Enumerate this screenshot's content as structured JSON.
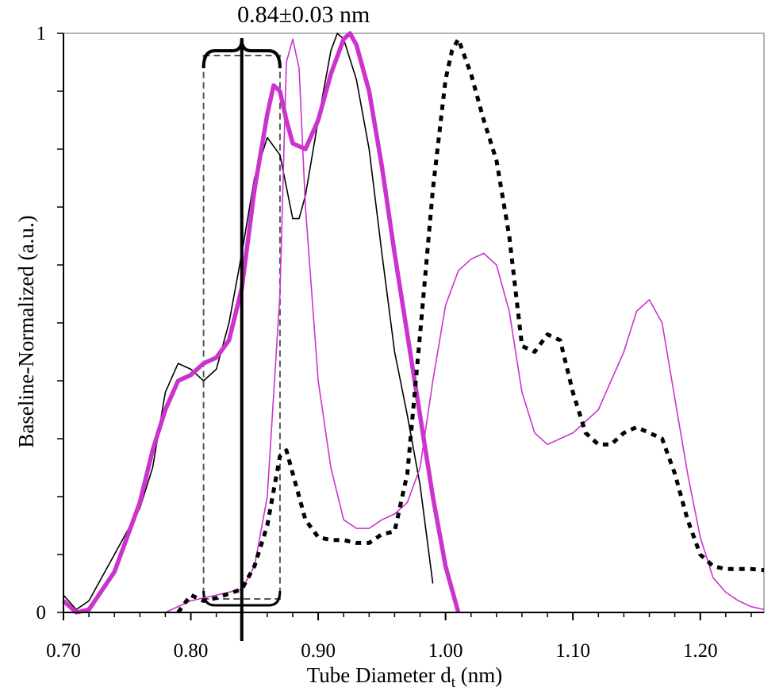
{
  "chart_data": {
    "type": "line",
    "xlabel": "Tube Diameter d",
    "xlabel_sub": "t",
    "xlabel_unit": " (nm)",
    "ylabel": "Baseline-Normalized (a.u.)",
    "xlim": [
      0.7,
      1.25
    ],
    "ylim": [
      0,
      1
    ],
    "x_ticks": [
      "0.70",
      "0.80",
      "0.90",
      "1.00",
      "1.10",
      "1.20"
    ],
    "y_ticks": [
      "0",
      "1"
    ],
    "grid": false,
    "annotation": {
      "text": "0.84±0.03 nm",
      "center": 0.84,
      "low": 0.81,
      "high": 0.87
    },
    "series": [
      {
        "color": "#000000",
        "style": "thin-solid",
        "points": [
          [
            0.7,
            0.03
          ],
          [
            0.71,
            0.005
          ],
          [
            0.72,
            0.02
          ],
          [
            0.74,
            0.1
          ],
          [
            0.76,
            0.18
          ],
          [
            0.77,
            0.25
          ],
          [
            0.78,
            0.38
          ],
          [
            0.79,
            0.43
          ],
          [
            0.8,
            0.42
          ],
          [
            0.81,
            0.4
          ],
          [
            0.82,
            0.42
          ],
          [
            0.83,
            0.5
          ],
          [
            0.84,
            0.62
          ],
          [
            0.85,
            0.75
          ],
          [
            0.86,
            0.82
          ],
          [
            0.87,
            0.79
          ],
          [
            0.88,
            0.68
          ],
          [
            0.885,
            0.68
          ],
          [
            0.89,
            0.72
          ],
          [
            0.9,
            0.85
          ],
          [
            0.91,
            0.97
          ],
          [
            0.915,
            1.0
          ],
          [
            0.92,
            0.99
          ],
          [
            0.93,
            0.92
          ],
          [
            0.94,
            0.8
          ],
          [
            0.95,
            0.62
          ],
          [
            0.96,
            0.45
          ],
          [
            0.97,
            0.34
          ],
          [
            0.98,
            0.22
          ],
          [
            0.99,
            0.05
          ]
        ]
      },
      {
        "color": "#cc33cc",
        "style": "thick-solid",
        "points": [
          [
            0.7,
            0.02
          ],
          [
            0.71,
            0.0
          ],
          [
            0.72,
            0.005
          ],
          [
            0.74,
            0.07
          ],
          [
            0.76,
            0.19
          ],
          [
            0.77,
            0.28
          ],
          [
            0.78,
            0.35
          ],
          [
            0.79,
            0.4
          ],
          [
            0.8,
            0.41
          ],
          [
            0.81,
            0.43
          ],
          [
            0.82,
            0.44
          ],
          [
            0.83,
            0.47
          ],
          [
            0.84,
            0.56
          ],
          [
            0.85,
            0.73
          ],
          [
            0.86,
            0.86
          ],
          [
            0.865,
            0.91
          ],
          [
            0.87,
            0.9
          ],
          [
            0.875,
            0.85
          ],
          [
            0.88,
            0.81
          ],
          [
            0.89,
            0.8
          ],
          [
            0.9,
            0.85
          ],
          [
            0.91,
            0.93
          ],
          [
            0.92,
            0.99
          ],
          [
            0.925,
            1.0
          ],
          [
            0.93,
            0.98
          ],
          [
            0.94,
            0.9
          ],
          [
            0.95,
            0.77
          ],
          [
            0.96,
            0.62
          ],
          [
            0.97,
            0.48
          ],
          [
            0.98,
            0.34
          ],
          [
            0.99,
            0.2
          ],
          [
            1.0,
            0.08
          ],
          [
            1.01,
            0.0
          ]
        ]
      },
      {
        "color": "#cc33cc",
        "style": "thin-solid",
        "points": [
          [
            0.78,
            0.0
          ],
          [
            0.8,
            0.02
          ],
          [
            0.82,
            0.03
          ],
          [
            0.84,
            0.04
          ],
          [
            0.85,
            0.08
          ],
          [
            0.86,
            0.2
          ],
          [
            0.87,
            0.55
          ],
          [
            0.875,
            0.95
          ],
          [
            0.88,
            0.99
          ],
          [
            0.885,
            0.94
          ],
          [
            0.89,
            0.7
          ],
          [
            0.9,
            0.4
          ],
          [
            0.91,
            0.25
          ],
          [
            0.92,
            0.16
          ],
          [
            0.93,
            0.145
          ],
          [
            0.94,
            0.145
          ],
          [
            0.95,
            0.16
          ],
          [
            0.96,
            0.17
          ],
          [
            0.97,
            0.19
          ],
          [
            0.98,
            0.25
          ],
          [
            0.99,
            0.4
          ],
          [
            1.0,
            0.53
          ],
          [
            1.01,
            0.59
          ],
          [
            1.02,
            0.61
          ],
          [
            1.03,
            0.62
          ],
          [
            1.04,
            0.6
          ],
          [
            1.05,
            0.52
          ],
          [
            1.06,
            0.38
          ],
          [
            1.07,
            0.31
          ],
          [
            1.08,
            0.29
          ],
          [
            1.09,
            0.3
          ],
          [
            1.1,
            0.31
          ],
          [
            1.11,
            0.33
          ],
          [
            1.12,
            0.35
          ],
          [
            1.13,
            0.4
          ],
          [
            1.14,
            0.45
          ],
          [
            1.15,
            0.52
          ],
          [
            1.16,
            0.54
          ],
          [
            1.17,
            0.5
          ],
          [
            1.18,
            0.37
          ],
          [
            1.19,
            0.24
          ],
          [
            1.2,
            0.13
          ],
          [
            1.21,
            0.06
          ],
          [
            1.22,
            0.035
          ],
          [
            1.23,
            0.02
          ],
          [
            1.24,
            0.01
          ],
          [
            1.25,
            0.005
          ]
        ]
      },
      {
        "color": "#000000",
        "style": "thick-dotted",
        "points": [
          [
            0.79,
            0.0
          ],
          [
            0.8,
            0.03
          ],
          [
            0.81,
            0.02
          ],
          [
            0.82,
            0.025
          ],
          [
            0.84,
            0.04
          ],
          [
            0.85,
            0.08
          ],
          [
            0.86,
            0.15
          ],
          [
            0.87,
            0.27
          ],
          [
            0.875,
            0.28
          ],
          [
            0.88,
            0.24
          ],
          [
            0.89,
            0.16
          ],
          [
            0.9,
            0.13
          ],
          [
            0.91,
            0.125
          ],
          [
            0.92,
            0.125
          ],
          [
            0.93,
            0.12
          ],
          [
            0.94,
            0.12
          ],
          [
            0.95,
            0.135
          ],
          [
            0.96,
            0.14
          ],
          [
            0.97,
            0.24
          ],
          [
            0.98,
            0.48
          ],
          [
            0.99,
            0.73
          ],
          [
            1.0,
            0.92
          ],
          [
            1.005,
            0.97
          ],
          [
            1.01,
            0.99
          ],
          [
            1.02,
            0.93
          ],
          [
            1.03,
            0.85
          ],
          [
            1.04,
            0.78
          ],
          [
            1.05,
            0.65
          ],
          [
            1.06,
            0.46
          ],
          [
            1.07,
            0.45
          ],
          [
            1.08,
            0.48
          ],
          [
            1.09,
            0.47
          ],
          [
            1.1,
            0.38
          ],
          [
            1.11,
            0.31
          ],
          [
            1.12,
            0.29
          ],
          [
            1.13,
            0.29
          ],
          [
            1.14,
            0.31
          ],
          [
            1.15,
            0.32
          ],
          [
            1.16,
            0.31
          ],
          [
            1.17,
            0.3
          ],
          [
            1.18,
            0.24
          ],
          [
            1.19,
            0.16
          ],
          [
            1.2,
            0.1
          ],
          [
            1.21,
            0.08
          ],
          [
            1.22,
            0.075
          ],
          [
            1.23,
            0.075
          ],
          [
            1.24,
            0.075
          ],
          [
            1.25,
            0.073
          ]
        ]
      }
    ]
  }
}
